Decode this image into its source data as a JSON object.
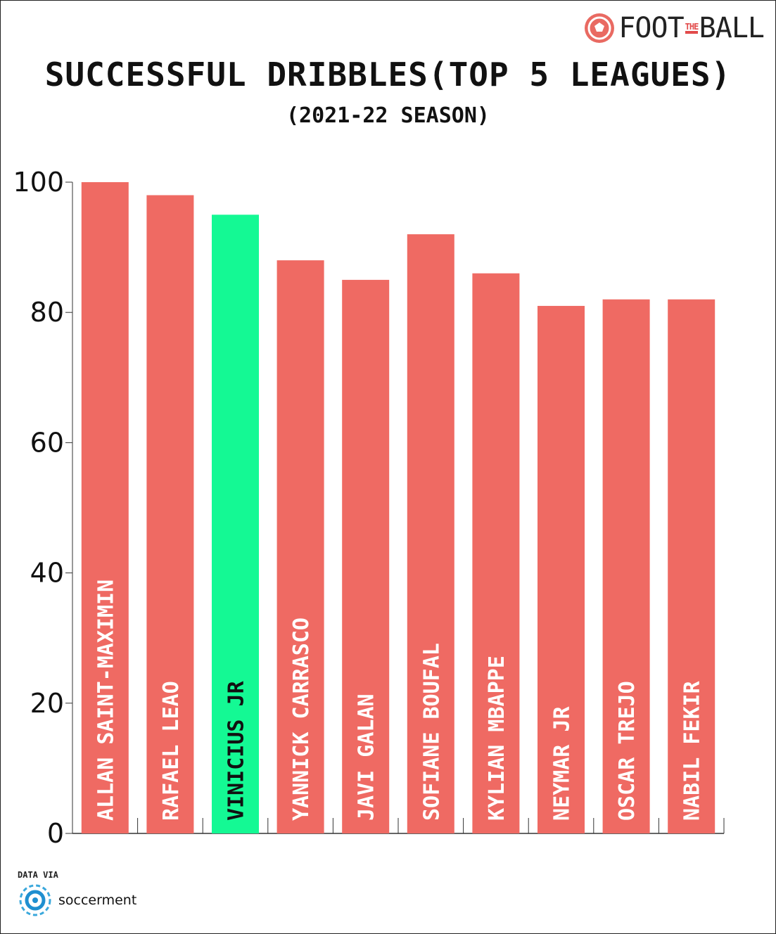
{
  "brand": {
    "logo_icon": "football-icon",
    "part1": "FOOT",
    "part2": "THE",
    "part3": "BALL",
    "color": "#e96a62"
  },
  "chart_data": {
    "type": "bar",
    "title": "SUCCESSFUL DRIBBLES(TOP 5 LEAGUES)",
    "subtitle": "(2021-22 SEASON)",
    "categories": [
      "ALLAN SAINT-MAXIMIN",
      "RAFAEL LEAO",
      "VINICIUS JR",
      "YANNICK CARRASCO",
      "JAVI GALAN",
      "SOFIANE BOUFAL",
      "KYLIAN MBAPPE",
      "NEYMAR JR",
      "OSCAR TREJO",
      "NABIL FEKIR"
    ],
    "values": [
      100,
      98,
      95,
      88,
      85,
      92,
      86,
      81,
      82,
      82
    ],
    "highlight_index": 2,
    "ylim": [
      0,
      100
    ],
    "yticks": [
      0,
      20,
      40,
      60,
      80,
      100
    ],
    "xlabel": "",
    "ylabel": "",
    "grid": false,
    "colors": {
      "bar": "#ef6a63",
      "highlight": "#14f994",
      "axis": "#333333"
    }
  },
  "source": {
    "caption": "DATA VIA",
    "name": "soccerment",
    "logo_icon": "soccerment-logo-icon"
  }
}
